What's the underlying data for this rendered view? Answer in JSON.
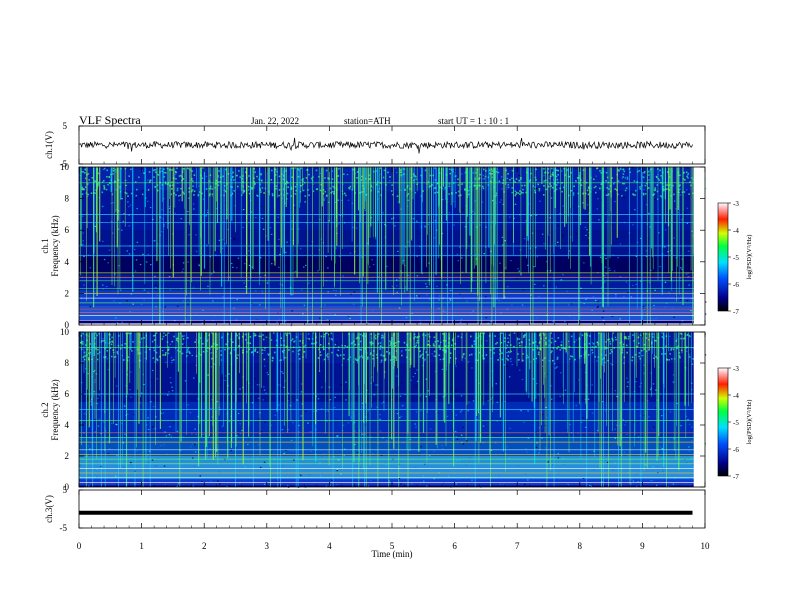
{
  "header": {
    "title": "VLF  Spectra",
    "date": "Jan. 22, 2022",
    "station": "station=ATH",
    "start": "start  UT  =    1  : 10 : 1"
  },
  "chart_data": [
    {
      "type": "line",
      "name": "ch1-waveform",
      "ylabel": "ch.1(V)",
      "xlim": [
        0,
        10
      ],
      "ylim": [
        -5,
        5
      ],
      "yticks": [
        "5",
        "-5"
      ],
      "baseline": 0.0,
      "x_end": 9.8
    },
    {
      "type": "heatmap",
      "name": "ch1-spectrogram",
      "ylabel": "ch.1\nFrequency (kHz)",
      "ylabel_lines": [
        "ch.1",
        "Frequency (kHz)"
      ],
      "xlim": [
        0,
        10
      ],
      "ylim": [
        0,
        10
      ],
      "yticks": [
        "0",
        "2",
        "4",
        "6",
        "8",
        "10"
      ],
      "colorbar": {
        "label": "log(PSD)(V²/Hz)",
        "ticks": [
          "-3",
          "-4",
          "-5",
          "-6",
          "-7"
        ],
        "range": [
          -7,
          -3
        ]
      },
      "data_gap_kHz": [
        0.0,
        0.1
      ]
    },
    {
      "type": "heatmap",
      "name": "ch2-spectrogram",
      "ylabel_lines": [
        "ch.2",
        "Frequency (kHz)"
      ],
      "xlim": [
        0,
        10
      ],
      "ylim": [
        0,
        10
      ],
      "yticks": [
        "0",
        "2",
        "4",
        "6",
        "8",
        "10"
      ],
      "colorbar": {
        "label": "log(PSD)(V²/Hz)",
        "ticks": [
          "-3",
          "-4",
          "-5",
          "-6",
          "-7"
        ],
        "range": [
          -7,
          -3
        ]
      }
    },
    {
      "type": "line",
      "name": "ch3-waveform",
      "ylabel": "ch.3(V)",
      "xlim": [
        0,
        10
      ],
      "ylim": [
        -5,
        5
      ],
      "yticks": [
        "5",
        "-5"
      ],
      "baseline": -1.0,
      "x_end": 9.8
    }
  ],
  "xaxis": {
    "label": "Time  (min)",
    "ticks": [
      "0",
      "1",
      "2",
      "3",
      "4",
      "5",
      "6",
      "7",
      "8",
      "9",
      "10"
    ]
  },
  "colors": {
    "background": "#000088",
    "spectral_low": "#00007a",
    "spectral_mid": "#00d0ff",
    "spectral_high": "#ff0000"
  }
}
